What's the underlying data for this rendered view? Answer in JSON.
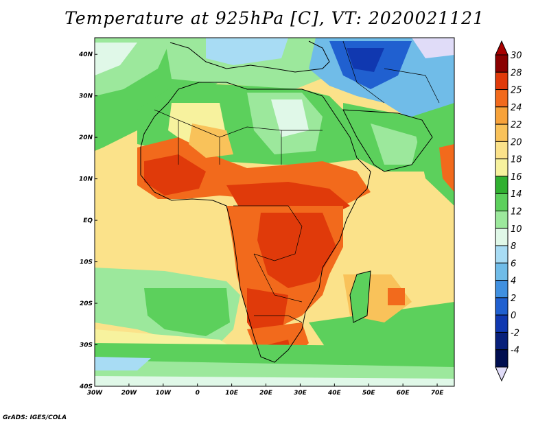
{
  "title": "Temperature at 925hPa [C], VT: 2020021121",
  "footer": "GrADS: IGES/COLA",
  "axes": {
    "lon_labels": [
      "30W",
      "20W",
      "10W",
      "0",
      "10E",
      "20E",
      "30E",
      "40E",
      "50E",
      "60E",
      "70E"
    ],
    "lat_labels": [
      "40N",
      "30N",
      "20N",
      "10N",
      "EQ",
      "10S",
      "20S",
      "30S",
      "40S"
    ],
    "lon_range": [
      -30,
      75
    ],
    "lat_range": [
      -40,
      44
    ]
  },
  "colorbar": {
    "levels": [
      "30",
      "28",
      "25",
      "24",
      "22",
      "20",
      "18",
      "16",
      "14",
      "12",
      "10",
      "8",
      "6",
      "4",
      "2",
      "0",
      "-2",
      "-4"
    ],
    "colors": [
      "#8a0000",
      "#e03a0a",
      "#f26a1c",
      "#f7a23a",
      "#f9c25a",
      "#fbe28a",
      "#f7f29e",
      "#30b030",
      "#5cd05c",
      "#9ce89c",
      "#e0f8e8",
      "#a8dcf4",
      "#70bce8",
      "#4090e0",
      "#2060d0",
      "#1038b0",
      "#08207a",
      "#000e50",
      "#e0dcf8"
    ],
    "top_arrow_color": "#a80000",
    "bottom_arrow_color": "#e0dcf8"
  },
  "colors": {
    "ocean_warm": "#fbe28a",
    "ocean_cool": "#5cd05c",
    "land_hot": "#f26a1c",
    "land_very_hot": "#e03a0a",
    "desert_cool": "#9ce89c",
    "mid_east_cold": "#2060d0"
  }
}
